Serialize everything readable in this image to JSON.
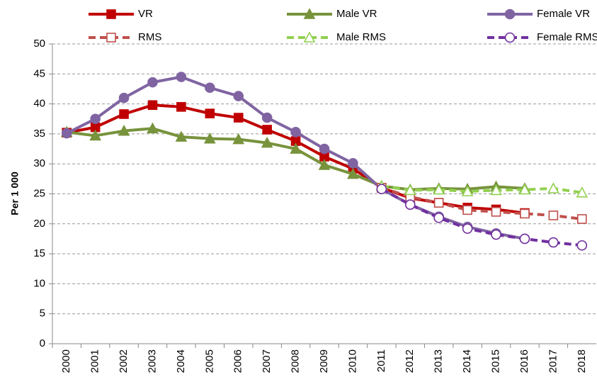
{
  "chart_data": {
    "type": "line",
    "y_label": "Per 1 000",
    "categories": [
      "2000",
      "2001",
      "2002",
      "2003",
      "2004",
      "2005",
      "2006",
      "2007",
      "2008",
      "2009",
      "2010",
      "2011",
      "2012",
      "2013",
      "2014",
      "2015",
      "2016",
      "2017",
      "2018"
    ],
    "ylim": [
      0,
      50
    ],
    "yticks": [
      0,
      5,
      10,
      15,
      20,
      25,
      30,
      35,
      40,
      45,
      50
    ],
    "grid": true,
    "series": [
      {
        "name": "VR",
        "color": "#c00000",
        "marker": "square",
        "filled": true,
        "dashed": false,
        "values": [
          35.2,
          36.1,
          38.3,
          39.8,
          39.5,
          38.4,
          37.7,
          35.7,
          33.8,
          31.2,
          29.2,
          26.0,
          24.3,
          23.5,
          22.7,
          22.4,
          21.8,
          null,
          null
        ]
      },
      {
        "name": "Male VR",
        "color": "#77933c",
        "marker": "triangle",
        "filled": true,
        "dashed": false,
        "values": [
          35.3,
          34.7,
          35.5,
          35.9,
          34.5,
          34.2,
          34.1,
          33.5,
          32.5,
          29.8,
          28.3,
          26.3,
          25.7,
          25.9,
          25.8,
          26.2,
          25.9,
          null,
          null
        ]
      },
      {
        "name": "Female VR",
        "color": "#8064a2",
        "marker": "circle",
        "filled": true,
        "dashed": false,
        "values": [
          35.1,
          37.5,
          41.0,
          43.6,
          44.5,
          42.7,
          41.3,
          37.7,
          35.3,
          32.5,
          30.1,
          25.8,
          23.2,
          21.2,
          19.5,
          18.4,
          17.5,
          null,
          null
        ]
      },
      {
        "name": "RMS",
        "color": "#c0504d",
        "marker": "square",
        "filled": false,
        "dashed": true,
        "values": [
          null,
          null,
          null,
          null,
          null,
          null,
          null,
          null,
          null,
          null,
          null,
          26.0,
          24.5,
          23.5,
          22.3,
          22.0,
          21.7,
          21.4,
          20.8
        ]
      },
      {
        "name": "Male RMS",
        "color": "#92d050",
        "marker": "triangle",
        "filled": false,
        "dashed": true,
        "values": [
          null,
          null,
          null,
          null,
          null,
          null,
          null,
          null,
          null,
          null,
          null,
          26.3,
          25.6,
          25.7,
          25.4,
          25.6,
          25.7,
          25.9,
          25.2
        ]
      },
      {
        "name": "Female RMS",
        "color": "#7030a0",
        "marker": "circle",
        "filled": false,
        "dashed": true,
        "values": [
          null,
          null,
          null,
          null,
          null,
          null,
          null,
          null,
          null,
          null,
          null,
          25.8,
          23.2,
          21.0,
          19.2,
          18.2,
          17.5,
          16.9,
          16.4
        ]
      }
    ]
  }
}
